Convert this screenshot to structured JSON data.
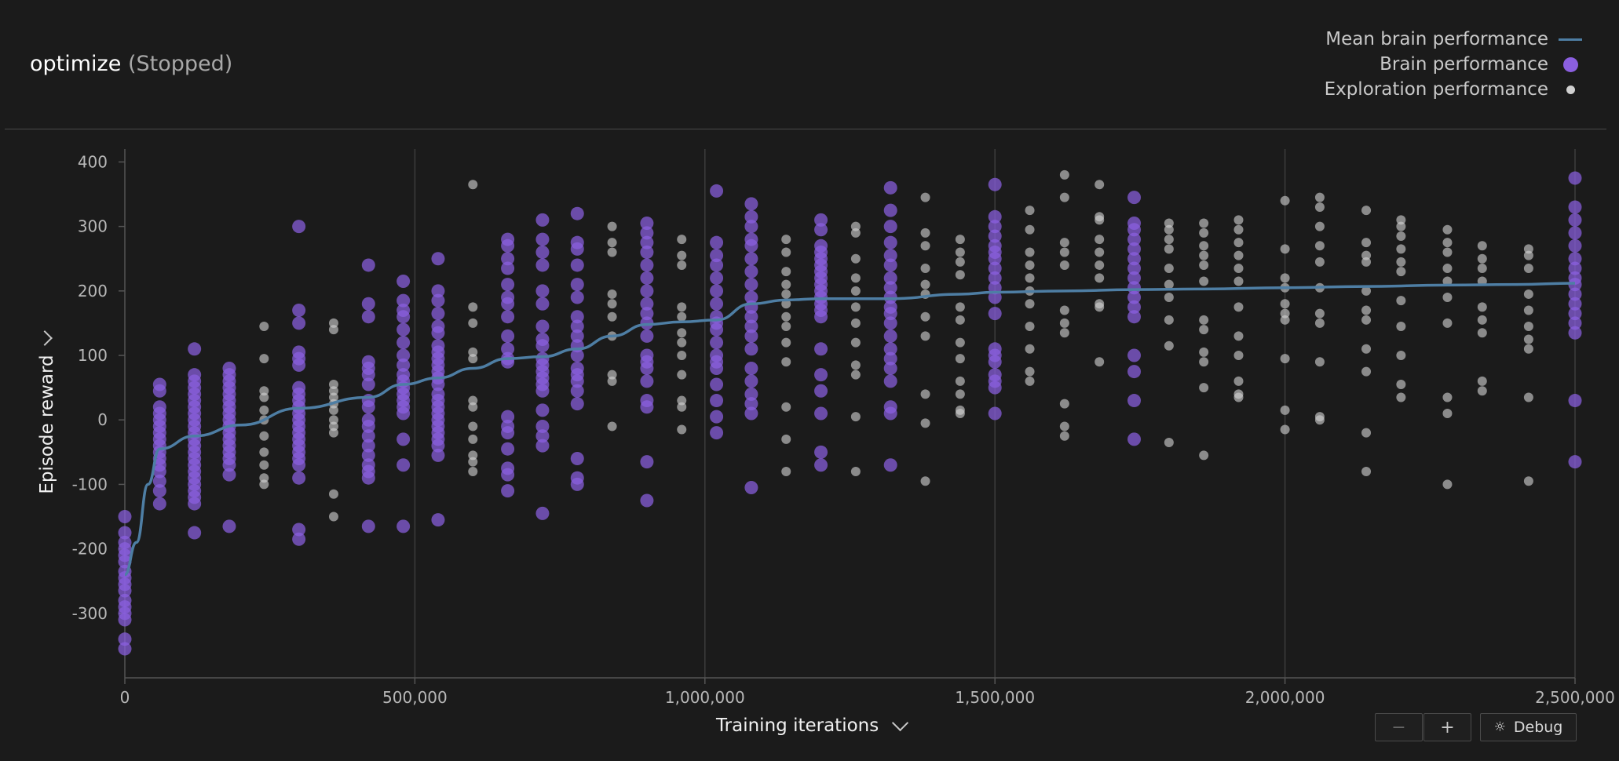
{
  "header": {
    "title": "optimize",
    "status": "(Stopped)"
  },
  "legend": [
    {
      "label": "Mean brain performance",
      "symbol": "line",
      "color": "#4e7ea4"
    },
    {
      "label": "Brain performance",
      "symbol": "large-dot",
      "color": "#8b5fe0"
    },
    {
      "label": "Exploration performance",
      "symbol": "small-dot",
      "color": "#d0d0d0"
    }
  ],
  "controls": {
    "zoom_out": "−",
    "zoom_in": "+",
    "debug": "Debug"
  },
  "chart_data": {
    "type": "scatter",
    "xlabel": "Training iterations",
    "ylabel": "Episode reward",
    "xlim": [
      0,
      2500000
    ],
    "ylim": [
      -400,
      420
    ],
    "x_ticks": [
      0,
      500000,
      1000000,
      1500000,
      2000000,
      2500000
    ],
    "x_tick_labels": [
      "0",
      "500,000",
      "1,000,000",
      "1,500,000",
      "2,000,000",
      "2,500,000"
    ],
    "y_ticks": [
      400,
      300,
      200,
      100,
      0,
      -100,
      -200,
      -300
    ],
    "y_tick_labels": [
      "400",
      "300",
      "200",
      "100",
      "0",
      "-100",
      "-200",
      "-300"
    ],
    "grid": "vertical",
    "legend_position": "top-right",
    "series": [
      {
        "name": "Mean brain performance",
        "kind": "line",
        "color": "#4e7ea4",
        "points": [
          [
            0,
            -240
          ],
          [
            20000,
            -190
          ],
          [
            40000,
            -100
          ],
          [
            60000,
            -45
          ],
          [
            120000,
            -25
          ],
          [
            200000,
            -8
          ],
          [
            300000,
            18
          ],
          [
            420000,
            35
          ],
          [
            480000,
            55
          ],
          [
            540000,
            65
          ],
          [
            600000,
            80
          ],
          [
            660000,
            95
          ],
          [
            720000,
            98
          ],
          [
            780000,
            110
          ],
          [
            840000,
            130
          ],
          [
            900000,
            148
          ],
          [
            960000,
            152
          ],
          [
            1020000,
            155
          ],
          [
            1080000,
            180
          ],
          [
            1140000,
            186
          ],
          [
            1200000,
            188
          ],
          [
            1320000,
            188
          ],
          [
            1440000,
            195
          ],
          [
            1500000,
            198
          ],
          [
            1620000,
            200
          ],
          [
            1740000,
            202
          ],
          [
            1860000,
            203
          ],
          [
            2000000,
            205
          ],
          [
            2140000,
            207
          ],
          [
            2280000,
            209
          ],
          [
            2400000,
            210
          ],
          [
            2500000,
            212
          ]
        ]
      },
      {
        "name": "Brain performance",
        "kind": "scatter",
        "color": "#8b5fe0",
        "columns": [
          {
            "x": 0,
            "y": [
              -150,
              -175,
              -190,
              -200,
              -210,
              -220,
              -235,
              -245,
              -255,
              -265,
              -280,
              -290,
              -300,
              -310,
              -340,
              -355
            ]
          },
          {
            "x": 60000,
            "y": [
              55,
              45,
              20,
              10,
              0,
              -10,
              -20,
              -30,
              -40,
              -50,
              -60,
              -70,
              -80,
              -95,
              -110,
              -130
            ]
          },
          {
            "x": 120000,
            "y": [
              110,
              70,
              60,
              50,
              40,
              30,
              20,
              10,
              0,
              -10,
              -20,
              -30,
              -40,
              -50,
              -60,
              -70,
              -80,
              -90,
              -100,
              -110,
              -120,
              -130,
              -175
            ]
          },
          {
            "x": 180000,
            "y": [
              80,
              70,
              60,
              50,
              40,
              30,
              20,
              10,
              0,
              -10,
              -20,
              -30,
              -40,
              -50,
              -60,
              -70,
              -85,
              -165
            ]
          },
          {
            "x": 300000,
            "y": [
              300,
              170,
              150,
              105,
              95,
              85,
              50,
              40,
              30,
              20,
              10,
              0,
              -10,
              -20,
              -30,
              -40,
              -50,
              -60,
              -70,
              -90,
              -170,
              -185
            ]
          },
          {
            "x": 420000,
            "y": [
              240,
              180,
              160,
              90,
              80,
              70,
              55,
              30,
              20,
              0,
              -10,
              -25,
              -40,
              -55,
              -70,
              -80,
              -90,
              -165
            ]
          },
          {
            "x": 480000,
            "y": [
              215,
              185,
              170,
              160,
              140,
              120,
              100,
              85,
              70,
              60,
              50,
              40,
              30,
              20,
              10,
              -30,
              -70,
              -165
            ]
          },
          {
            "x": 540000,
            "y": [
              250,
              200,
              185,
              165,
              145,
              135,
              115,
              105,
              95,
              85,
              75,
              65,
              55,
              40,
              30,
              20,
              10,
              0,
              -10,
              -20,
              -30,
              -40,
              -55,
              -155
            ]
          },
          {
            "x": 660000,
            "y": [
              280,
              270,
              250,
              235,
              210,
              190,
              180,
              160,
              130,
              110,
              95,
              90,
              5,
              -10,
              -20,
              -45,
              -75,
              -85,
              -110
            ]
          },
          {
            "x": 720000,
            "y": [
              310,
              280,
              260,
              240,
              200,
              180,
              145,
              125,
              115,
              95,
              85,
              75,
              65,
              55,
              45,
              15,
              -10,
              -25,
              -40,
              -145
            ]
          },
          {
            "x": 780000,
            "y": [
              320,
              275,
              265,
              240,
              210,
              190,
              160,
              145,
              130,
              115,
              100,
              80,
              70,
              60,
              45,
              25,
              -60,
              -90,
              -100
            ]
          },
          {
            "x": 900000,
            "y": [
              305,
              290,
              275,
              260,
              240,
              220,
              200,
              180,
              165,
              150,
              130,
              100,
              90,
              80,
              60,
              30,
              20,
              -65,
              -125
            ]
          },
          {
            "x": 1020000,
            "y": [
              355,
              275,
              255,
              240,
              220,
              200,
              180,
              160,
              150,
              140,
              120,
              100,
              90,
              80,
              55,
              30,
              5,
              -20
            ]
          },
          {
            "x": 1080000,
            "y": [
              335,
              315,
              300,
              280,
              270,
              250,
              230,
              210,
              190,
              175,
              160,
              145,
              130,
              110,
              80,
              60,
              40,
              25,
              10,
              -105
            ]
          },
          {
            "x": 1200000,
            "y": [
              310,
              295,
              270,
              260,
              250,
              240,
              230,
              220,
              210,
              200,
              190,
              180,
              170,
              160,
              110,
              70,
              45,
              10,
              -50,
              -70
            ]
          },
          {
            "x": 1320000,
            "y": [
              360,
              325,
              300,
              275,
              255,
              240,
              220,
              205,
              190,
              175,
              165,
              150,
              130,
              110,
              95,
              80,
              60,
              20,
              10,
              -70
            ]
          },
          {
            "x": 1500000,
            "y": [
              365,
              315,
              300,
              285,
              270,
              260,
              250,
              235,
              220,
              205,
              190,
              165,
              110,
              100,
              90,
              70,
              60,
              50,
              10
            ]
          },
          {
            "x": 1740000,
            "y": [
              345,
              305,
              295,
              280,
              265,
              250,
              235,
              220,
              205,
              190,
              175,
              160,
              100,
              75,
              30,
              -30
            ]
          },
          {
            "x": 2500000,
            "y": [
              375,
              330,
              310,
              290,
              270,
              250,
              235,
              220,
              210,
              195,
              180,
              165,
              150,
              135,
              30,
              -65
            ]
          }
        ]
      },
      {
        "name": "Exploration performance",
        "kind": "scatter",
        "color": "#d0d0d0",
        "columns": [
          {
            "x": 240000,
            "y": [
              145,
              95,
              45,
              35,
              15,
              0,
              -25,
              -50,
              -70,
              -90,
              -100
            ]
          },
          {
            "x": 360000,
            "y": [
              150,
              140,
              55,
              45,
              35,
              25,
              15,
              0,
              -10,
              -20,
              -115,
              -150
            ]
          },
          {
            "x": 600000,
            "y": [
              365,
              175,
              150,
              105,
              95,
              30,
              20,
              -10,
              -30,
              -55,
              -65,
              -80
            ]
          },
          {
            "x": 840000,
            "y": [
              300,
              275,
              260,
              195,
              180,
              160,
              130,
              70,
              60,
              -10
            ]
          },
          {
            "x": 960000,
            "y": [
              280,
              255,
              240,
              175,
              160,
              135,
              120,
              100,
              70,
              30,
              20,
              -15
            ]
          },
          {
            "x": 1140000,
            "y": [
              280,
              260,
              230,
              210,
              195,
              180,
              160,
              145,
              120,
              90,
              20,
              -30,
              -80
            ]
          },
          {
            "x": 1260000,
            "y": [
              300,
              290,
              250,
              220,
              200,
              175,
              150,
              120,
              85,
              70,
              5,
              -80
            ]
          },
          {
            "x": 1380000,
            "y": [
              345,
              290,
              270,
              235,
              210,
              195,
              160,
              130,
              40,
              -5,
              -95
            ]
          },
          {
            "x": 1440000,
            "y": [
              280,
              260,
              245,
              225,
              175,
              155,
              120,
              95,
              60,
              40,
              15,
              10
            ]
          },
          {
            "x": 1560000,
            "y": [
              325,
              295,
              260,
              240,
              220,
              200,
              180,
              145,
              110,
              75,
              60
            ]
          },
          {
            "x": 1620000,
            "y": [
              380,
              345,
              275,
              260,
              240,
              170,
              150,
              135,
              25,
              -10,
              -25
            ]
          },
          {
            "x": 1680000,
            "y": [
              365,
              315,
              310,
              280,
              260,
              240,
              220,
              180,
              175,
              90
            ]
          },
          {
            "x": 1800000,
            "y": [
              305,
              295,
              280,
              265,
              235,
              210,
              190,
              155,
              115,
              -35
            ]
          },
          {
            "x": 1860000,
            "y": [
              305,
              290,
              270,
              255,
              240,
              215,
              155,
              140,
              105,
              90,
              50,
              -55
            ]
          },
          {
            "x": 1920000,
            "y": [
              310,
              295,
              275,
              255,
              235,
              215,
              175,
              130,
              100,
              60,
              40,
              35
            ]
          },
          {
            "x": 2000000,
            "y": [
              340,
              265,
              220,
              205,
              180,
              165,
              155,
              95,
              15,
              -15
            ]
          },
          {
            "x": 2060000,
            "y": [
              345,
              330,
              300,
              270,
              245,
              205,
              165,
              150,
              90,
              5,
              0
            ]
          },
          {
            "x": 2140000,
            "y": [
              325,
              275,
              255,
              245,
              200,
              170,
              155,
              110,
              75,
              -20,
              -80
            ]
          },
          {
            "x": 2200000,
            "y": [
              310,
              300,
              285,
              265,
              245,
              230,
              185,
              145,
              100,
              55,
              35
            ]
          },
          {
            "x": 2280000,
            "y": [
              295,
              275,
              260,
              235,
              215,
              190,
              150,
              35,
              10,
              -100
            ]
          },
          {
            "x": 2340000,
            "y": [
              270,
              250,
              235,
              215,
              175,
              155,
              135,
              60,
              45
            ]
          },
          {
            "x": 2420000,
            "y": [
              265,
              255,
              235,
              195,
              170,
              145,
              125,
              110,
              35,
              -95
            ]
          }
        ]
      }
    ]
  }
}
